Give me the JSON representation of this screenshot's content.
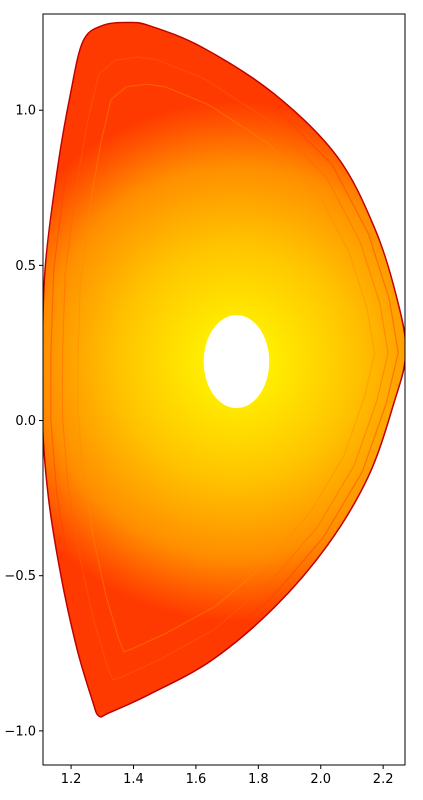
{
  "chart_data": {
    "type": "heatmap",
    "title": "",
    "xlabel": "",
    "ylabel": "",
    "xlim": [
      1.11,
      2.27
    ],
    "ylim": [
      -1.11,
      1.31
    ],
    "xticks": [
      1.2,
      1.4,
      1.6,
      1.8,
      2.0,
      2.2
    ],
    "xtick_labels": [
      "1.2",
      "1.4",
      "1.6",
      "1.8",
      "2.0",
      "2.2"
    ],
    "yticks": [
      -1.0,
      -0.5,
      0.0,
      0.5,
      1.0
    ],
    "ytick_labels": [
      "−1.0",
      "−0.5",
      "0.0",
      "0.5",
      "1.0"
    ],
    "colormap": "hot",
    "colormap_colors": [
      "#000000",
      "#ff0000",
      "#ffa500",
      "#ffff00"
    ],
    "boundary_outline": [
      [
        1.38,
        1.28
      ],
      [
        1.3,
        1.27
      ],
      [
        1.24,
        1.22
      ],
      [
        1.2,
        1.05
      ],
      [
        1.16,
        0.82
      ],
      [
        1.12,
        0.5
      ],
      [
        1.11,
        0.2
      ],
      [
        1.11,
        0.0
      ],
      [
        1.13,
        -0.25
      ],
      [
        1.17,
        -0.5
      ],
      [
        1.22,
        -0.73
      ],
      [
        1.27,
        -0.9
      ],
      [
        1.29,
        -0.95
      ],
      [
        1.32,
        -0.94
      ],
      [
        1.45,
        -0.88
      ],
      [
        1.65,
        -0.77
      ],
      [
        1.85,
        -0.6
      ],
      [
        2.02,
        -0.4
      ],
      [
        2.15,
        -0.18
      ],
      [
        2.23,
        0.05
      ],
      [
        2.27,
        0.22
      ],
      [
        2.24,
        0.4
      ],
      [
        2.17,
        0.62
      ],
      [
        2.05,
        0.85
      ],
      [
        1.85,
        1.05
      ],
      [
        1.62,
        1.2
      ],
      [
        1.45,
        1.27
      ]
    ],
    "hole": {
      "center": [
        1.73,
        0.19
      ],
      "semi_axes": [
        0.105,
        0.15
      ]
    },
    "center_value": 1.0,
    "edge_value": 0.25,
    "grid": false
  }
}
